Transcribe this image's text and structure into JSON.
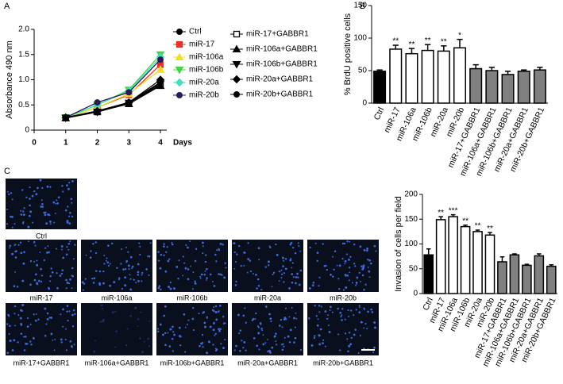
{
  "panel_labels": [
    "A",
    "B",
    "C"
  ],
  "micrographs": [
    "Ctrl",
    "miR-17",
    "miR-106a",
    "miR-106b",
    "miR-20a",
    "miR-20b",
    "miR-17+GABBR1",
    "miR-106a+GABBR1",
    "miR-106b+GABBR1",
    "miR-20a+GABBR1",
    "miR-20b+GABBR1"
  ],
  "chart_data": [
    {
      "type": "line",
      "y_label": "Absorbance 490 nm",
      "x_label": "Days",
      "x": [
        1,
        2,
        3,
        4
      ],
      "xlim": [
        0,
        4.2
      ],
      "xticks": [
        0,
        1,
        2,
        3,
        4
      ],
      "ylim": [
        0,
        2
      ],
      "yticks": [
        0,
        0.5,
        {
          "value": 1,
          "label": "1.0"
        },
        1.5,
        {
          "value": 2,
          "label": "2.0"
        }
      ],
      "series": [
        {
          "name": "Ctrl",
          "color": "#000000",
          "marker": "circle",
          "values": [
            0.25,
            0.38,
            0.55,
            0.95
          ]
        },
        {
          "name": "miR-17",
          "color": "#e8302a",
          "marker": "square",
          "values": [
            0.25,
            0.45,
            0.7,
            1.3
          ]
        },
        {
          "name": "miR-106a",
          "color": "#f0e020",
          "marker": "triangle",
          "values": [
            0.25,
            0.45,
            0.72,
            1.2
          ]
        },
        {
          "name": "miR-106b",
          "color": "#40d840",
          "marker": "triangle-down",
          "values": [
            0.25,
            0.5,
            0.8,
            1.5
          ]
        },
        {
          "name": "miR-20a",
          "color": "#40e0c0",
          "marker": "diamond",
          "values": [
            0.25,
            0.5,
            0.78,
            1.45
          ]
        },
        {
          "name": "miR-20b",
          "color": "#2a1a5a",
          "marker": "circle",
          "values": [
            0.25,
            0.55,
            0.75,
            1.4
          ]
        },
        {
          "name": "miR-17+GABBR1",
          "color": "#000000",
          "marker": "open-square",
          "values": [
            0.24,
            0.36,
            0.53,
            0.9
          ]
        },
        {
          "name": "miR-106a+GABBR1",
          "color": "#000000",
          "marker": "triangle",
          "values": [
            0.24,
            0.37,
            0.52,
            0.88
          ]
        },
        {
          "name": "miR-106b+GABBR1",
          "color": "#000000",
          "marker": "triangle-down",
          "values": [
            0.24,
            0.36,
            0.54,
            0.92
          ]
        },
        {
          "name": "miR-20a+GABBR1",
          "color": "#000000",
          "marker": "diamond",
          "values": [
            0.25,
            0.38,
            0.55,
            1.0
          ]
        },
        {
          "name": "miR-20b+GABBR1",
          "color": "#000000",
          "marker": "circle",
          "values": [
            0.25,
            0.37,
            0.53,
            0.95
          ]
        }
      ]
    },
    {
      "type": "bar",
      "y_label": "% BrdU positive cells",
      "categories": [
        "Ctrl",
        "miR-17",
        "miR-106a",
        "miR-106b",
        "miR-20a",
        "miR-20b",
        "miR-17+GABBR1",
        "miR-106a+GABBR1",
        "miR-106b+GABBR1",
        "miR-20a+GABBR1",
        "miR-20b+GABBR1"
      ],
      "values": [
        49,
        83,
        76,
        81,
        80,
        85,
        53,
        50,
        44,
        49,
        51
      ],
      "errors": [
        2,
        6,
        8,
        9,
        8,
        13,
        6,
        5,
        5,
        2,
        4
      ],
      "annotations": [
        null,
        "**",
        "**",
        "**",
        "**",
        "*",
        null,
        null,
        null,
        null,
        null
      ],
      "colors": [
        "#000000",
        "#ffffff",
        "#ffffff",
        "#ffffff",
        "#ffffff",
        "#ffffff",
        "#808080",
        "#808080",
        "#808080",
        "#808080",
        "#808080"
      ],
      "ylim": [
        0,
        150
      ],
      "yticks": [
        0,
        50,
        100,
        150
      ]
    },
    {
      "type": "bar",
      "y_label": "Invasion of cells per field",
      "categories": [
        "Ctrl",
        "miR-17",
        "miR-106a",
        "miR-106b",
        "miR-20a",
        "miR-20b",
        "miR-17+GABBR1",
        "miR-106a+GABBR1",
        "miR-106b+GABBR1",
        "miR-20a+GABBR1",
        "miR-20b+GABBR1"
      ],
      "values": [
        78,
        149,
        155,
        135,
        125,
        118,
        64,
        78,
        57,
        76,
        55
      ],
      "errors": [
        12,
        6,
        4,
        3,
        3,
        5,
        10,
        2,
        2,
        4,
        3
      ],
      "annotations": [
        null,
        "**",
        "***",
        "**",
        "**",
        "**",
        null,
        null,
        null,
        null,
        null
      ],
      "colors": [
        "#000000",
        "#ffffff",
        "#ffffff",
        "#ffffff",
        "#ffffff",
        "#ffffff",
        "#808080",
        "#808080",
        "#808080",
        "#808080",
        "#808080"
      ],
      "ylim": [
        0,
        200
      ],
      "yticks": [
        0,
        50,
        100,
        150,
        200
      ]
    }
  ]
}
